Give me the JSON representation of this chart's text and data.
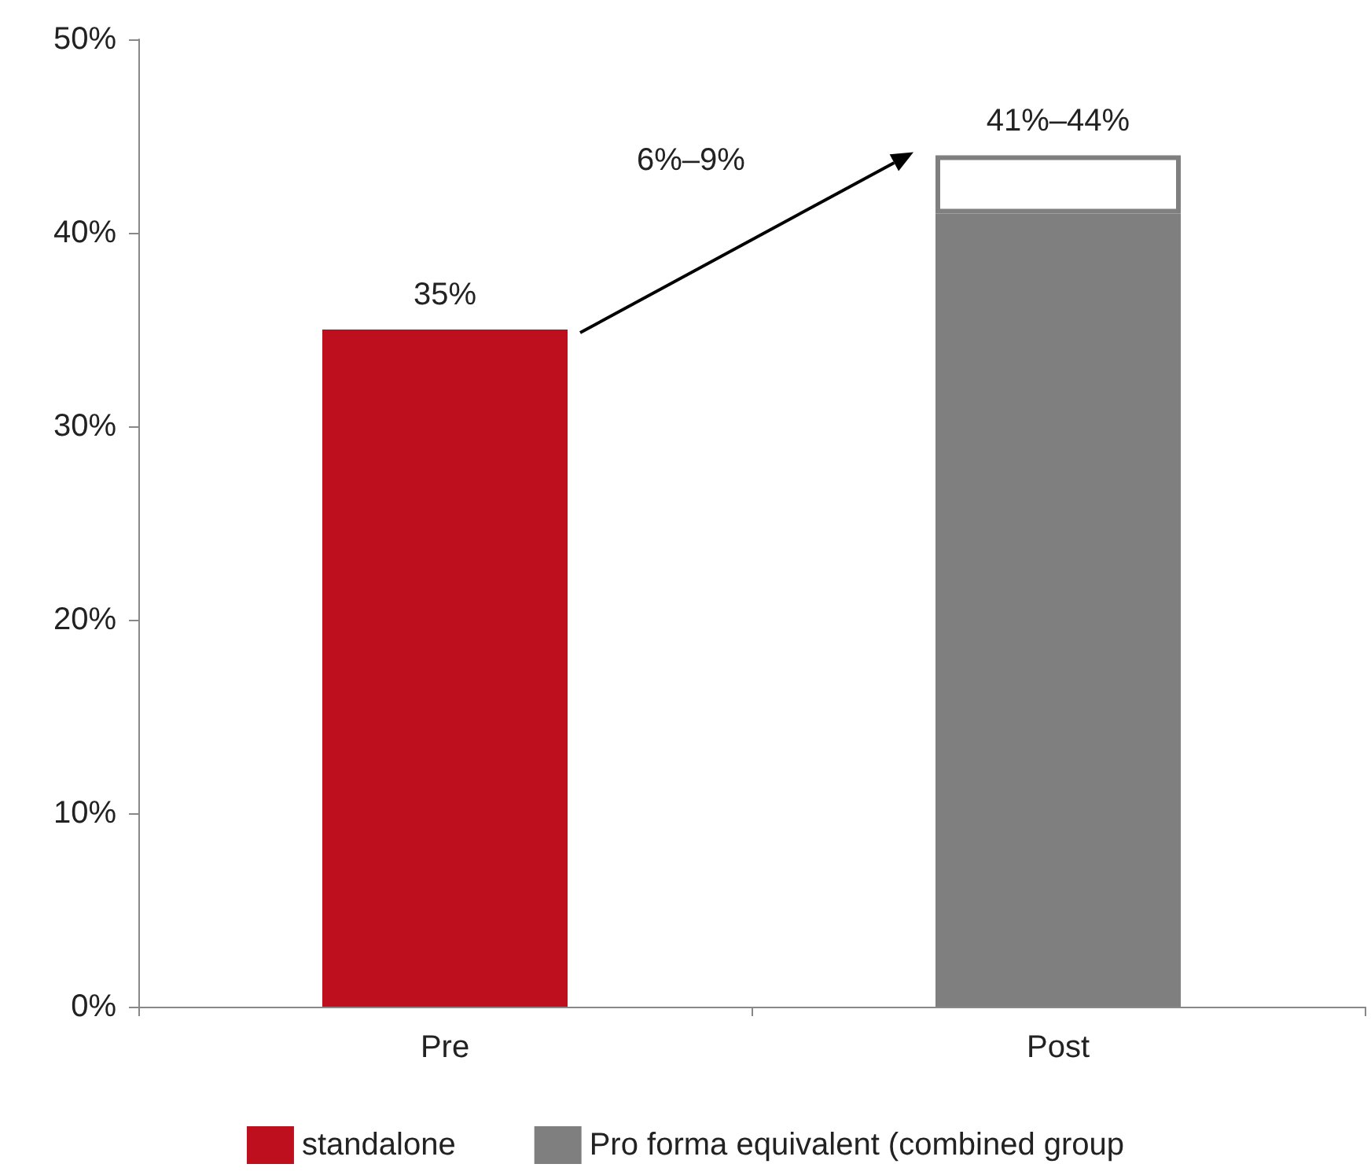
{
  "chart_data": {
    "type": "bar",
    "stacked": true,
    "categories": [
      "Pre",
      "Post"
    ],
    "series": [
      {
        "name": "standalone",
        "color": "#bd0f1e",
        "values": [
          35,
          null
        ],
        "value_labels": [
          "35%",
          null
        ]
      },
      {
        "name": "Pro forma equivalent (combined group",
        "color": "#7f7f7f",
        "values": [
          null,
          41
        ]
      },
      {
        "color": "#ffffff",
        "values": [
          null,
          3
        ]
      }
    ],
    "ylim": [
      0,
      50
    ],
    "yticks": [
      {
        "value": 0,
        "label": "0%"
      },
      {
        "value": 10,
        "label": "10%"
      },
      {
        "value": 20,
        "label": "20%"
      },
      {
        "value": 30,
        "label": "30%"
      },
      {
        "value": 40,
        "label": "40%"
      },
      {
        "value": 50,
        "label": "50%"
      }
    ],
    "grid": false,
    "legend": "bottom",
    "annotations": [
      "6%–9%",
      {
        "text": "41%–44%",
        "x": "Post",
        "y": 44
      }
    ]
  }
}
